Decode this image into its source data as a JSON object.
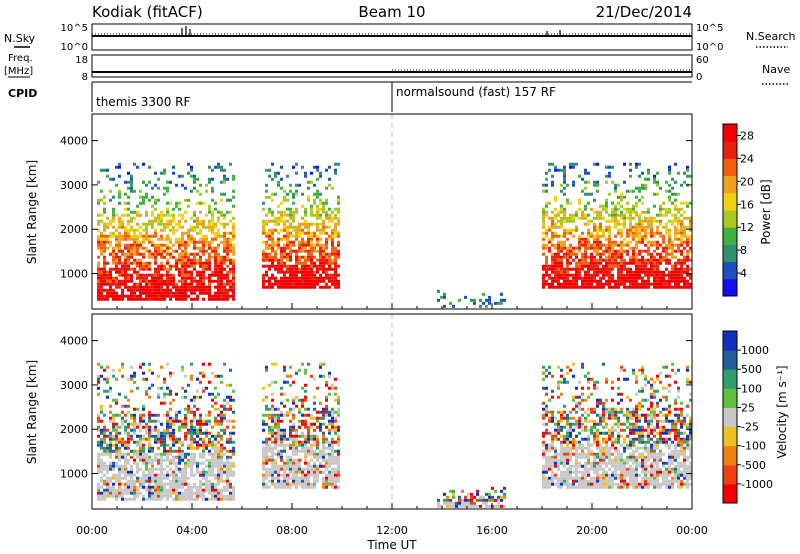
{
  "header": {
    "station": "Kodiak (fitACF)",
    "beam": "Beam 10",
    "date": "21/Dec/2014"
  },
  "top_strips": {
    "nsky_label": "N.Sky",
    "nsky_ticks": [
      "10^5",
      "10^0"
    ],
    "nsearch_label": "N.Search",
    "nsearch_ticks": [
      "10^5",
      "10^0"
    ],
    "freq_label": "Freq.",
    "freq_unit": "[MHz]",
    "freq_ticks": [
      "18",
      "8"
    ],
    "nave_label": "Nave",
    "nave_ticks": [
      "60",
      "0"
    ],
    "cpid_label": "CPID",
    "cpid_modes": [
      {
        "label": "themis 3300 RF",
        "start_hour": 0
      },
      {
        "label": "normalsound (fast) 157 RF",
        "start_hour": 12
      }
    ]
  },
  "chart_data": [
    {
      "type": "heatmap",
      "panel": "power",
      "ylabel": "Slant Range [km]",
      "xlim": [
        0,
        24
      ],
      "ylim": [
        200,
        4600
      ],
      "y_ticks": [
        1000,
        2000,
        3000,
        4000
      ],
      "colorbar": {
        "label": "Power [dB]",
        "ticks": [
          "4",
          "8",
          "12",
          "16",
          "20",
          "24",
          "28"
        ],
        "range": [
          0,
          30
        ],
        "colors": [
          "#1010f0",
          "#2050c0",
          "#2f8f6f",
          "#40b040",
          "#a8c820",
          "#f0d010",
          "#f0a020",
          "#f06010",
          "#e82010",
          "#f00000"
        ]
      },
      "echo_regions": [
        {
          "hours": [
            0.2,
            5.7
          ],
          "range_km": [
            400,
            3500
          ],
          "level": "strong"
        },
        {
          "hours": [
            6.8,
            9.9
          ],
          "range_km": [
            700,
            3500
          ],
          "level": "strong"
        },
        {
          "hours": [
            13.8,
            16.5
          ],
          "range_km": [
            250,
            700
          ],
          "level": "weak"
        },
        {
          "hours": [
            18.0,
            24.0
          ],
          "range_km": [
            700,
            3500
          ],
          "level": "strong"
        }
      ]
    },
    {
      "type": "heatmap",
      "panel": "velocity",
      "xlabel": "Time UT",
      "ylabel": "Slant Range [km]",
      "xlim": [
        0,
        24
      ],
      "ylim": [
        200,
        4600
      ],
      "x_ticks": [
        "00:00",
        "04:00",
        "08:00",
        "12:00",
        "16:00",
        "20:00",
        "00:00"
      ],
      "y_ticks": [
        1000,
        2000,
        3000,
        4000
      ],
      "colorbar": {
        "label": "Velocity [m s⁻¹]",
        "ticks": [
          "1000",
          "500",
          "100",
          "25",
          "-25",
          "-100",
          "-500",
          "-1000"
        ],
        "colors": [
          "#1030c0",
          "#2060a0",
          "#2f9f6f",
          "#60c040",
          "#c8c8c8",
          "#f0c020",
          "#f08010",
          "#f04010",
          "#f00000"
        ]
      },
      "ground_scatter_color": "#c8c8c8",
      "echo_regions": [
        {
          "hours": [
            0.2,
            5.7
          ],
          "range_km": [
            400,
            3500
          ]
        },
        {
          "hours": [
            6.8,
            9.9
          ],
          "range_km": [
            700,
            3500
          ]
        },
        {
          "hours": [
            13.8,
            16.5
          ],
          "range_km": [
            250,
            700
          ]
        },
        {
          "hours": [
            18.0,
            24.0
          ],
          "range_km": [
            700,
            3500
          ]
        }
      ]
    }
  ]
}
